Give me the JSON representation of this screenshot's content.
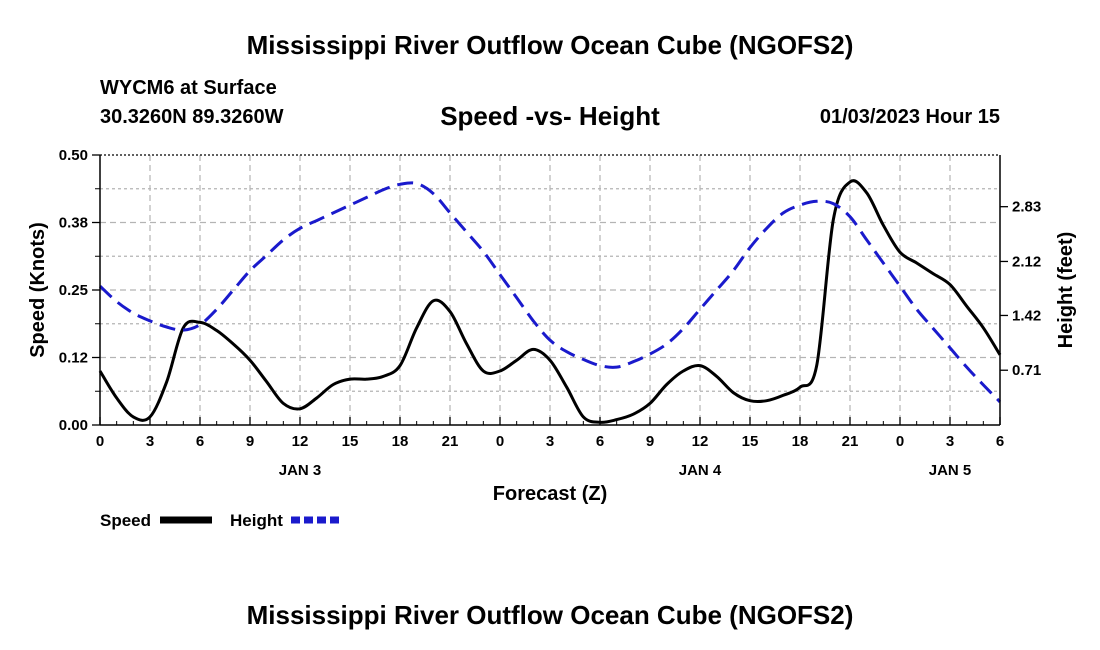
{
  "header": {
    "title": "Mississippi River Outflow Ocean Cube (NGOFS2)",
    "station": "WYCM6 at Surface",
    "coordinates": "30.3260N  89.3260W",
    "subtitle": "Speed -vs- Height",
    "datetime": "01/03/2023 Hour 15",
    "footer_title": "Mississippi River Outflow Ocean Cube (NGOFS2)"
  },
  "colors": {
    "speed": "#000000",
    "height": "#1a1acc",
    "grid": "#b4b4b4"
  },
  "chart_data": {
    "type": "line",
    "title": "Speed -vs- Height",
    "xlabel": "Forecast (Z)",
    "ylabel": "Speed (Knots)",
    "y2label": "Height (feet)",
    "xlim": [
      0,
      54
    ],
    "ylim": [
      0,
      0.5
    ],
    "y2lim": [
      0,
      3.5
    ],
    "x_ticks": [
      0,
      3,
      6,
      9,
      12,
      15,
      18,
      21,
      24,
      27,
      30,
      33,
      36,
      39,
      42,
      45,
      48,
      51,
      54
    ],
    "x_tick_labels": [
      "0",
      "3",
      "6",
      "9",
      "12",
      "15",
      "18",
      "21",
      "0",
      "3",
      "6",
      "9",
      "12",
      "15",
      "18",
      "21",
      "0",
      "3",
      "6"
    ],
    "y_ticks": [
      0,
      0.125,
      0.25,
      0.375,
      0.5
    ],
    "y_tick_labels": [
      "0.00",
      "0.12",
      "0.25",
      "0.38",
      "0.50"
    ],
    "y2_ticks": [
      0.71,
      1.42,
      2.12,
      2.83
    ],
    "y2_tick_labels": [
      "0.71",
      "1.42",
      "2.12",
      "2.83"
    ],
    "date_labels": [
      {
        "x": 12,
        "label": "JAN 3"
      },
      {
        "x": 36,
        "label": "JAN 4"
      },
      {
        "x": 51,
        "label": "JAN 5"
      }
    ],
    "grid": true,
    "series": [
      {
        "name": "Speed",
        "axis": "left",
        "style": "solid",
        "x": [
          0,
          1,
          2,
          3,
          4,
          5,
          6,
          7,
          8,
          9,
          10,
          11,
          12,
          13,
          14,
          15,
          16,
          17,
          18,
          19,
          20,
          21,
          22,
          23,
          24,
          25,
          26,
          27,
          28,
          29,
          30,
          31,
          32,
          33,
          34,
          35,
          36,
          37,
          38,
          39,
          40,
          41,
          42,
          43,
          44,
          45,
          46,
          47,
          48,
          49,
          50,
          51,
          52,
          53,
          54
        ],
        "values": [
          0.1,
          0.05,
          0.015,
          0.015,
          0.08,
          0.18,
          0.19,
          0.175,
          0.15,
          0.12,
          0.08,
          0.04,
          0.03,
          0.05,
          0.075,
          0.085,
          0.085,
          0.09,
          0.11,
          0.18,
          0.23,
          0.21,
          0.15,
          0.1,
          0.1,
          0.12,
          0.14,
          0.12,
          0.07,
          0.015,
          0.005,
          0.01,
          0.02,
          0.04,
          0.075,
          0.1,
          0.11,
          0.09,
          0.06,
          0.045,
          0.045,
          0.055,
          0.07,
          0.11,
          0.38,
          0.45,
          0.43,
          0.37,
          0.32,
          0.3,
          0.28,
          0.26,
          0.22,
          0.18,
          0.13
        ]
      },
      {
        "name": "Height",
        "axis": "right",
        "style": "dashed",
        "x": [
          0,
          1,
          2,
          3,
          4,
          5,
          6,
          7,
          8,
          9,
          10,
          11,
          12,
          13,
          14,
          15,
          16,
          17,
          18,
          19,
          20,
          21,
          22,
          23,
          24,
          25,
          26,
          27,
          28,
          29,
          30,
          31,
          32,
          33,
          34,
          35,
          36,
          37,
          38,
          39,
          40,
          41,
          42,
          43,
          44,
          45,
          46,
          47,
          48,
          49,
          50,
          51,
          52,
          53,
          54
        ],
        "values": [
          1.8,
          1.6,
          1.45,
          1.35,
          1.27,
          1.23,
          1.3,
          1.5,
          1.75,
          2.0,
          2.2,
          2.4,
          2.55,
          2.65,
          2.75,
          2.85,
          2.95,
          3.05,
          3.12,
          3.13,
          3.0,
          2.75,
          2.5,
          2.25,
          1.95,
          1.65,
          1.35,
          1.1,
          0.95,
          0.85,
          0.77,
          0.75,
          0.82,
          0.92,
          1.05,
          1.25,
          1.5,
          1.75,
          2.0,
          2.3,
          2.55,
          2.75,
          2.85,
          2.9,
          2.87,
          2.7,
          2.4,
          2.1,
          1.8,
          1.5,
          1.25,
          1.0,
          0.75,
          0.52,
          0.3
        ]
      }
    ],
    "legend": [
      {
        "label": "Speed"
      },
      {
        "label": "Height"
      }
    ]
  }
}
